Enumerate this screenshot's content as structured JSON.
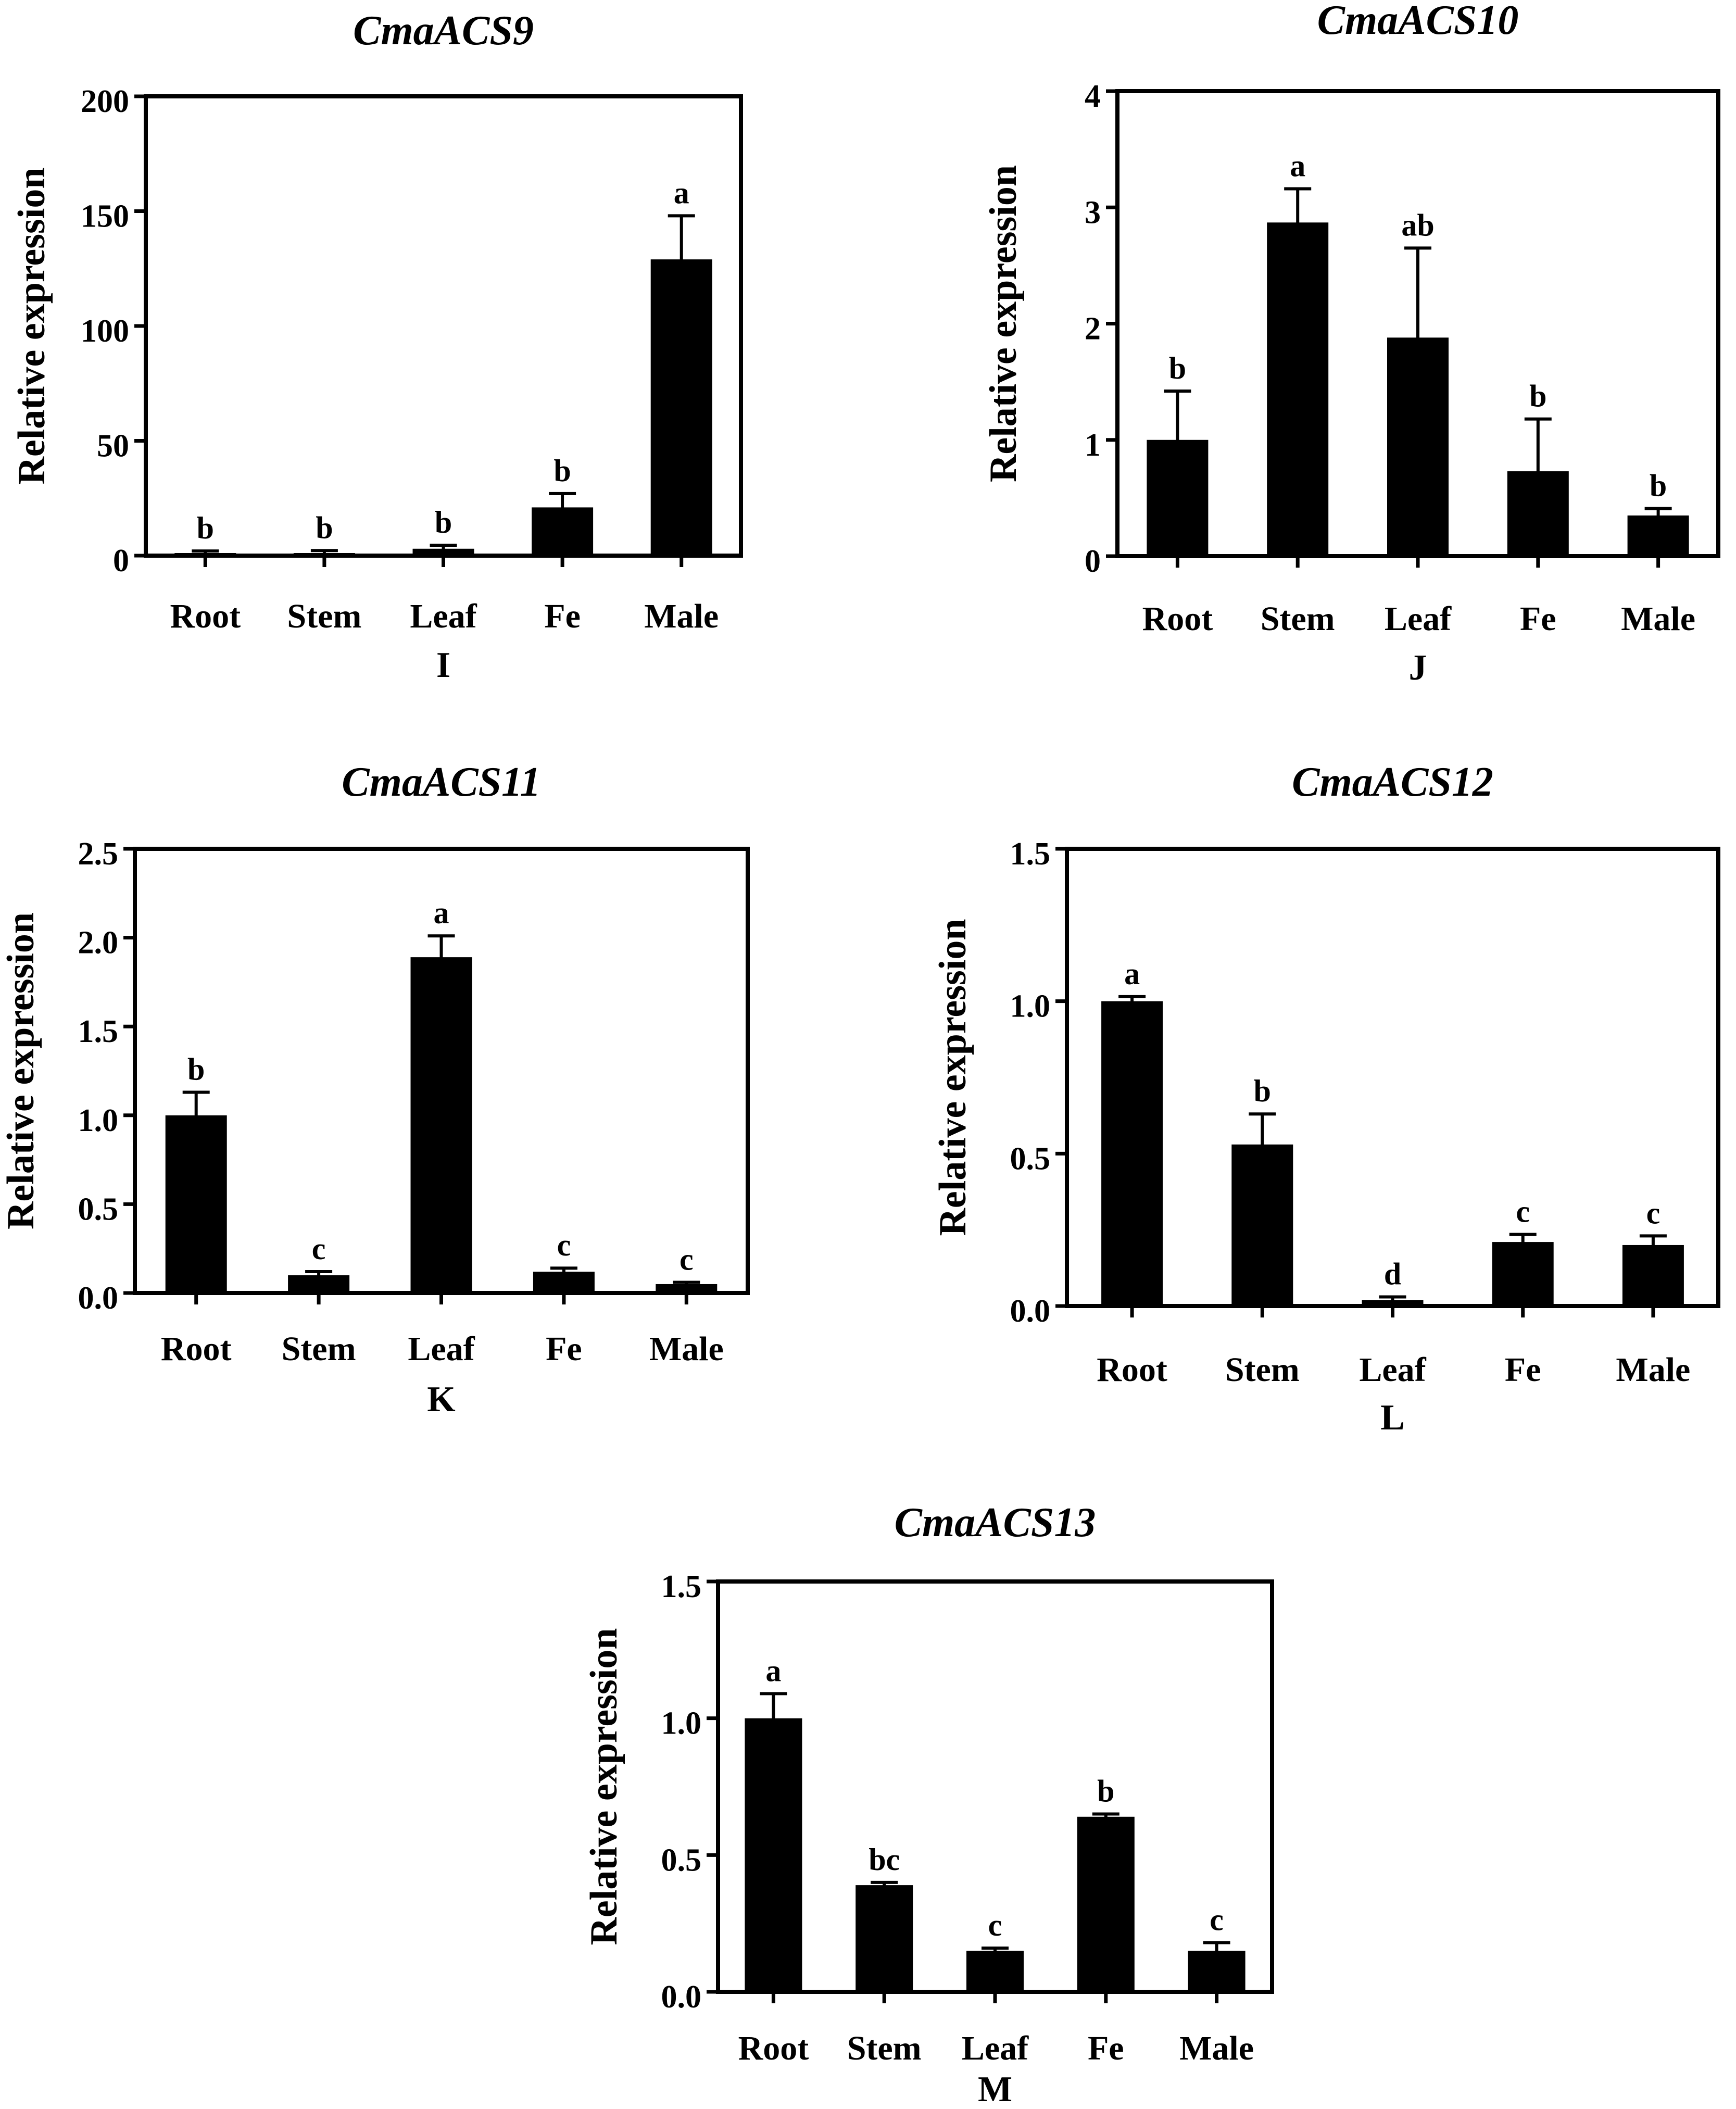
{
  "chart_data": [
    {
      "type": "bar",
      "panel_label": "I",
      "title": "CmaACS9",
      "ylabel": "Relative expression",
      "xlabel": "",
      "ylim": [
        0,
        200
      ],
      "yticks": [
        0,
        50,
        100,
        150,
        200
      ],
      "ytick_labels": [
        "0",
        "50",
        "100",
        "150",
        "200"
      ],
      "categories": [
        "Root",
        "Stem",
        "Leaf",
        "Fe",
        "Male"
      ],
      "values": [
        1,
        1,
        3,
        21,
        129
      ],
      "errors": [
        1,
        1.2,
        1.5,
        6,
        19
      ],
      "significance": [
        "b",
        "b",
        "b",
        "b",
        "a"
      ]
    },
    {
      "type": "bar",
      "panel_label": "J",
      "title": "CmaACS10",
      "ylabel": "Relative expression",
      "xlabel": "",
      "ylim": [
        0,
        4
      ],
      "yticks": [
        0,
        1,
        2,
        3,
        4
      ],
      "ytick_labels": [
        "0",
        "1",
        "2",
        "3",
        "4"
      ],
      "categories": [
        "Root",
        "Stem",
        "Leaf",
        "Fe",
        "Male"
      ],
      "values": [
        1.0,
        2.87,
        1.88,
        0.73,
        0.35
      ],
      "errors": [
        0.42,
        0.29,
        0.77,
        0.45,
        0.06
      ],
      "significance": [
        "b",
        "a",
        "ab",
        "b",
        "b"
      ]
    },
    {
      "type": "bar",
      "panel_label": "K",
      "title": "CmaACS11",
      "ylabel": "Relative expression",
      "xlabel": "",
      "ylim": [
        0,
        2.5
      ],
      "yticks": [
        0,
        0.5,
        1.0,
        1.5,
        2.0,
        2.5
      ],
      "ytick_labels": [
        "0.0",
        "0.5",
        "1.0",
        "1.5",
        "2.0",
        "2.5"
      ],
      "categories": [
        "Root",
        "Stem",
        "Leaf",
        "Fe",
        "Male"
      ],
      "values": [
        1.0,
        0.1,
        1.89,
        0.12,
        0.05
      ],
      "errors": [
        0.13,
        0.02,
        0.12,
        0.02,
        0.01
      ],
      "significance": [
        "b",
        "c",
        "a",
        "c",
        "c"
      ]
    },
    {
      "type": "bar",
      "panel_label": "L",
      "title": "CmaACS12",
      "ylabel": "Relative expression",
      "xlabel": "",
      "ylim": [
        0,
        1.5
      ],
      "yticks": [
        0,
        0.5,
        1.0,
        1.5
      ],
      "ytick_labels": [
        "0.0",
        "0.5",
        "1.0",
        "1.5"
      ],
      "categories": [
        "Root",
        "Stem",
        "Leaf",
        "Fe",
        "Male"
      ],
      "values": [
        1.0,
        0.53,
        0.02,
        0.21,
        0.2
      ],
      "errors": [
        0.015,
        0.1,
        0.01,
        0.025,
        0.03
      ],
      "significance": [
        "a",
        "b",
        "d",
        "c",
        "c"
      ]
    },
    {
      "type": "bar",
      "panel_label": "M",
      "title": "CmaACS13",
      "ylabel": "Relative expression",
      "xlabel": "",
      "ylim": [
        0,
        1.5
      ],
      "yticks": [
        0,
        0.5,
        1.0,
        1.5
      ],
      "ytick_labels": [
        "0.0",
        "0.5",
        "1.0",
        "1.5"
      ],
      "categories": [
        "Root",
        "Stem",
        "Leaf",
        "Fe",
        "Male"
      ],
      "values": [
        1.0,
        0.39,
        0.15,
        0.64,
        0.15
      ],
      "errors": [
        0.09,
        0.01,
        0.01,
        0.01,
        0.03
      ],
      "significance": [
        "a",
        "bc",
        "c",
        "b",
        "c"
      ]
    }
  ]
}
